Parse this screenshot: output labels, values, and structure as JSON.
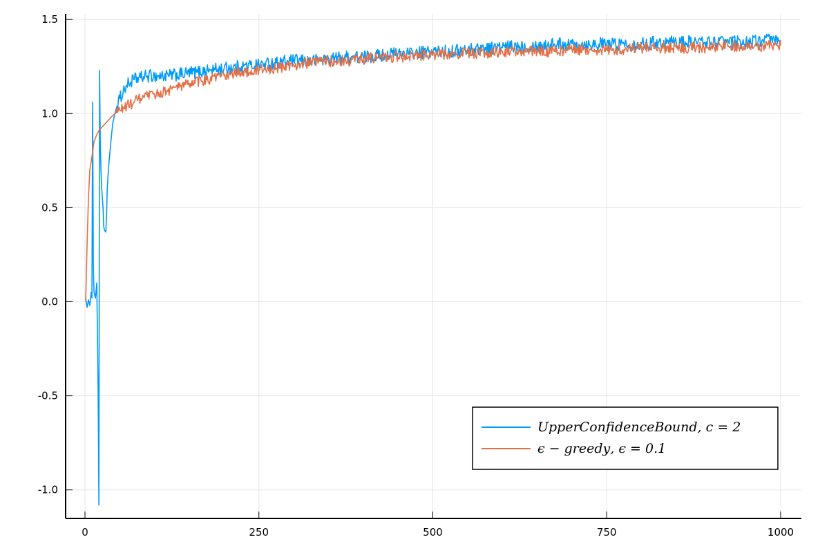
{
  "chart_data": {
    "type": "line",
    "title": "",
    "xlabel": "",
    "ylabel": "",
    "xlim": [
      0,
      1000
    ],
    "ylim": [
      -1.15,
      1.53
    ],
    "xticks": [
      0,
      250,
      500,
      750,
      1000
    ],
    "xtick_labels": [
      "0",
      "250",
      "500",
      "750",
      "1000"
    ],
    "yticks": [
      -1.0,
      -0.5,
      0.0,
      0.5,
      1.0,
      1.5
    ],
    "ytick_labels": [
      "-1.0",
      "-0.5",
      "0.0",
      "0.5",
      "1.0",
      "1.5"
    ],
    "grid": true,
    "legend_position": "bottom-right",
    "series": [
      {
        "name": "UpperConfidenceBound, c=2",
        "legend_label": "𝑈𝑝𝑝𝑒𝑟𝐶𝑜𝑛𝑓𝑖𝑑𝑒𝑛𝑐𝑒𝐵𝑜𝑢𝑛𝑑, 𝑐 = 2",
        "color": "#009af9",
        "points": [
          [
            1,
            0.02
          ],
          [
            3,
            -0.03
          ],
          [
            5,
            0.01
          ],
          [
            7,
            -0.02
          ],
          [
            9,
            0.05
          ],
          [
            10,
            0.02
          ],
          [
            11,
            1.06
          ],
          [
            12,
            0.2
          ],
          [
            13,
            0.05
          ],
          [
            15,
            0.02
          ],
          [
            17,
            0.1
          ],
          [
            19,
            -0.5
          ],
          [
            20,
            -1.08
          ],
          [
            21,
            1.23
          ],
          [
            22,
            0.85
          ],
          [
            23,
            0.7
          ],
          [
            24,
            0.6
          ],
          [
            26,
            0.5
          ],
          [
            27,
            0.4
          ],
          [
            28,
            0.38
          ],
          [
            30,
            0.37
          ],
          [
            31,
            0.45
          ],
          [
            32,
            0.6
          ],
          [
            34,
            0.72
          ],
          [
            36,
            0.8
          ],
          [
            38,
            0.88
          ],
          [
            40,
            0.95
          ],
          [
            43,
            1.0
          ],
          [
            46,
            1.04
          ],
          [
            50,
            1.08
          ],
          [
            55,
            1.12
          ],
          [
            60,
            1.15
          ],
          [
            70,
            1.18
          ],
          [
            80,
            1.19
          ],
          [
            90,
            1.2
          ],
          [
            100,
            1.2
          ],
          [
            120,
            1.2
          ],
          [
            140,
            1.21
          ],
          [
            160,
            1.22
          ],
          [
            180,
            1.23
          ],
          [
            200,
            1.24
          ],
          [
            225,
            1.25
          ],
          [
            250,
            1.26
          ],
          [
            275,
            1.27
          ],
          [
            300,
            1.28
          ],
          [
            325,
            1.28
          ],
          [
            350,
            1.29
          ],
          [
            375,
            1.3
          ],
          [
            400,
            1.3
          ],
          [
            425,
            1.31
          ],
          [
            450,
            1.32
          ],
          [
            475,
            1.32
          ],
          [
            500,
            1.33
          ],
          [
            525,
            1.33
          ],
          [
            550,
            1.34
          ],
          [
            575,
            1.35
          ],
          [
            600,
            1.35
          ],
          [
            625,
            1.36
          ],
          [
            650,
            1.36
          ],
          [
            675,
            1.37
          ],
          [
            700,
            1.37
          ],
          [
            725,
            1.37
          ],
          [
            750,
            1.37
          ],
          [
            775,
            1.37
          ],
          [
            800,
            1.37
          ],
          [
            825,
            1.38
          ],
          [
            850,
            1.38
          ],
          [
            875,
            1.38
          ],
          [
            900,
            1.38
          ],
          [
            925,
            1.38
          ],
          [
            950,
            1.38
          ],
          [
            975,
            1.39
          ],
          [
            1000,
            1.39
          ]
        ],
        "noise": 0.035
      },
      {
        "name": "ε-greedy, ε=0.1",
        "legend_label": "𝜖 − 𝑔𝑟𝑒𝑒𝑑𝑦, 𝜖 = 0.1",
        "color": "#e26f46",
        "points": [
          [
            1,
            0.0
          ],
          [
            3,
            0.3
          ],
          [
            5,
            0.55
          ],
          [
            7,
            0.7
          ],
          [
            10,
            0.77
          ],
          [
            13,
            0.85
          ],
          [
            16,
            0.88
          ],
          [
            20,
            0.91
          ],
          [
            25,
            0.93
          ],
          [
            30,
            0.95
          ],
          [
            35,
            0.97
          ],
          [
            40,
            0.99
          ],
          [
            50,
            1.02
          ],
          [
            60,
            1.04
          ],
          [
            70,
            1.06
          ],
          [
            80,
            1.08
          ],
          [
            90,
            1.09
          ],
          [
            100,
            1.1
          ],
          [
            125,
            1.13
          ],
          [
            150,
            1.16
          ],
          [
            175,
            1.18
          ],
          [
            200,
            1.2
          ],
          [
            225,
            1.22
          ],
          [
            250,
            1.23
          ],
          [
            275,
            1.24
          ],
          [
            300,
            1.26
          ],
          [
            325,
            1.27
          ],
          [
            350,
            1.28
          ],
          [
            375,
            1.28
          ],
          [
            400,
            1.29
          ],
          [
            425,
            1.3
          ],
          [
            450,
            1.3
          ],
          [
            475,
            1.31
          ],
          [
            500,
            1.31
          ],
          [
            525,
            1.32
          ],
          [
            550,
            1.32
          ],
          [
            575,
            1.32
          ],
          [
            600,
            1.33
          ],
          [
            625,
            1.33
          ],
          [
            650,
            1.33
          ],
          [
            675,
            1.33
          ],
          [
            700,
            1.34
          ],
          [
            725,
            1.34
          ],
          [
            750,
            1.34
          ],
          [
            775,
            1.34
          ],
          [
            800,
            1.35
          ],
          [
            825,
            1.35
          ],
          [
            850,
            1.35
          ],
          [
            875,
            1.35
          ],
          [
            900,
            1.35
          ],
          [
            925,
            1.36
          ],
          [
            950,
            1.36
          ],
          [
            975,
            1.36
          ],
          [
            1000,
            1.36
          ]
        ],
        "noise": 0.03
      }
    ]
  }
}
